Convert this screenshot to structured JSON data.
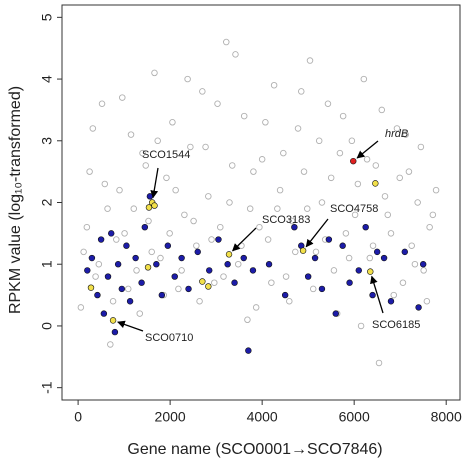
{
  "chart_data": {
    "type": "scatter",
    "y_label": "RPKM value (log₁₀-transformed)",
    "x_label": "Gene name (SCO0001→SCO7846)",
    "xlim": [
      -350,
      8300
    ],
    "ylim": [
      -1.2,
      5.2
    ],
    "xticks": [
      0,
      2000,
      4000,
      6000,
      8000
    ],
    "yticks": [
      -1,
      0,
      1,
      2,
      3,
      4,
      5
    ],
    "grid": false,
    "series": [
      {
        "color": "#b0b0b0",
        "marker": "open",
        "x": [
          120,
          250,
          380,
          520,
          640,
          760,
          900,
          1010,
          1150,
          1270,
          1400,
          1530,
          1660,
          1790,
          1920,
          2050,
          2180,
          2310,
          2440,
          2570,
          2700,
          2830,
          2960,
          3090,
          3220,
          3350,
          3480,
          3610,
          3740,
          3870,
          4000,
          4130,
          4260,
          4390,
          4520,
          4650,
          4780,
          4910,
          5040,
          5170,
          5300,
          5430,
          5560,
          5690,
          5820,
          5950,
          6080,
          6210,
          6340,
          6470,
          6600,
          6730,
          6860,
          6990,
          7120,
          7250,
          7380,
          7510,
          7640,
          7780,
          60,
          190,
          320,
          450,
          580,
          700,
          830,
          960,
          1090,
          1210,
          1340,
          1470,
          1600,
          1730,
          1860,
          1990,
          2120,
          2250,
          2380,
          2510,
          2640,
          2770,
          2900,
          3030,
          3160,
          3290,
          3420,
          3550,
          3680,
          3810,
          3940,
          4070,
          4200,
          4330,
          4460,
          4590,
          4720,
          4850,
          4980,
          5110,
          5240,
          5370,
          5500,
          5630,
          5760,
          5890,
          6020,
          6150,
          6280,
          6410,
          6540,
          6670,
          6800,
          6930,
          7060,
          7190,
          7320,
          7450,
          7580,
          7710
        ],
        "values": [
          1.2,
          2.5,
          0.8,
          3.6,
          1.9,
          0.4,
          2.2,
          1.5,
          3.1,
          0.9,
          2.8,
          1.7,
          4.1,
          1.1,
          2.4,
          3.3,
          0.6,
          1.8,
          2.9,
          1.3,
          3.8,
          2.1,
          0.7,
          1.6,
          4.6,
          2.6,
          1.0,
          3.4,
          1.9,
          0.3,
          2.7,
          1.4,
          3.9,
          2.2,
          0.8,
          1.7,
          3.2,
          2.5,
          4.3,
          1.2,
          2.0,
          3.6,
          0.9,
          2.8,
          1.5,
          3.0,
          2.3,
          4.0,
          1.1,
          2.6,
          3.5,
          1.8,
          0.5,
          2.4,
          3.1,
          1.3,
          2.0,
          0.9,
          1.6,
          2.2,
          0.3,
          1.6,
          3.2,
          1.0,
          2.3,
          -0.3,
          1.4,
          3.7,
          0.6,
          1.9,
          0.2,
          2.6,
          1.2,
          3.0,
          0.5,
          1.5,
          2.2,
          0.9,
          4.0,
          1.7,
          0.4,
          2.9,
          1.4,
          3.6,
          0.8,
          2.0,
          4.4,
          1.3,
          0.1,
          2.5,
          1.6,
          3.3,
          0.7,
          1.9,
          2.8,
          0.4,
          1.2,
          3.8,
          1.9,
          0.6,
          3.0,
          1.4,
          2.4,
          0.2,
          3.4,
          1.1,
          1.8,
          0.0,
          2.7,
          1.3,
          -0.6,
          2.1,
          1.5,
          3.2,
          0.7,
          2.5,
          1.0,
          2.9,
          0.4,
          1.8
        ]
      },
      {
        "color": "#1c1ca8",
        "marker": "filled",
        "x": [
          200,
          300,
          420,
          500,
          560,
          650,
          720,
          800,
          870,
          950,
          1050,
          1130,
          1250,
          1380,
          1450,
          1560,
          1700,
          1820,
          1950,
          2100,
          2250,
          2400,
          2600,
          2850,
          3050,
          3250,
          3400,
          3600,
          3700,
          3800,
          4150,
          4500,
          4700,
          4850,
          5000,
          5150,
          5300,
          5450,
          5600,
          5750,
          5900,
          6100,
          6250,
          6400,
          6500,
          6650,
          6800,
          7100,
          7400,
          7500
        ],
        "values": [
          0.9,
          1.1,
          0.5,
          1.4,
          0.2,
          0.8,
          1.5,
          -0.1,
          1.0,
          0.6,
          1.3,
          0.4,
          1.1,
          0.7,
          1.6,
          2.1,
          1.0,
          0.5,
          1.3,
          0.8,
          1.1,
          0.6,
          1.2,
          0.9,
          1.4,
          1.0,
          0.7,
          1.1,
          -0.4,
          0.9,
          1.0,
          0.5,
          1.6,
          1.3,
          0.8,
          1.1,
          0.6,
          1.4,
          0.2,
          1.3,
          0.7,
          0.9,
          1.6,
          0.5,
          1.2,
          1.1,
          0.4,
          1.2,
          0.3,
          1.0
        ]
      },
      {
        "color": "#f2e04a",
        "marker": "filled",
        "x": [
          280,
          760,
          1520,
          1540,
          1610,
          1660,
          2700,
          2830,
          3280,
          4890,
          6350,
          6460
        ],
        "values": [
          0.62,
          0.09,
          0.95,
          1.92,
          2.0,
          1.95,
          0.72,
          0.64,
          1.16,
          1.22,
          0.88,
          2.31
        ]
      },
      {
        "color": "#e02020",
        "marker": "filled",
        "x": [
          5980
        ],
        "values": [
          2.67
        ]
      }
    ],
    "annotations": [
      {
        "text": "SCO1544",
        "x": 1610,
        "y": 2.0
      },
      {
        "text": "SCO3183",
        "x": 3280,
        "y": 1.16
      },
      {
        "text": "SCO4758",
        "x": 4890,
        "y": 1.22
      },
      {
        "text": "SCO6185",
        "x": 6350,
        "y": 0.88
      },
      {
        "text": "SCO0710",
        "x": 760,
        "y": 0.09
      },
      {
        "text": "hrdB",
        "x": 5980,
        "y": 2.67,
        "style": "italic"
      }
    ]
  }
}
